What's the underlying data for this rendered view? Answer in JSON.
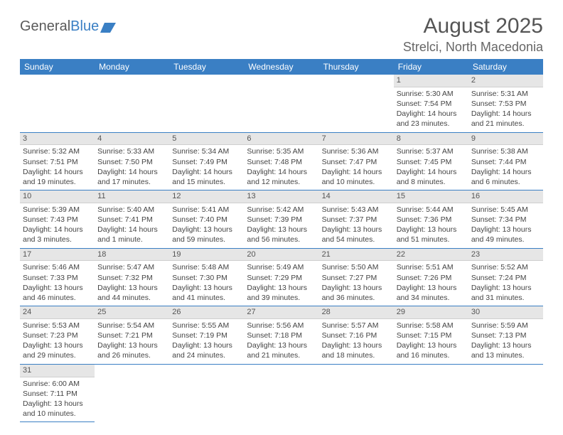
{
  "logo": {
    "text1": "General",
    "text2": "Blue"
  },
  "title": "August 2025",
  "location": "Strelci, North Macedonia",
  "colors": {
    "header_bg": "#3a7fc4",
    "header_text": "#ffffff",
    "daynum_bg": "#e6e6e6",
    "row_border": "#3a7fc4",
    "body_text": "#444444",
    "title_text": "#555555"
  },
  "weekdays": [
    "Sunday",
    "Monday",
    "Tuesday",
    "Wednesday",
    "Thursday",
    "Friday",
    "Saturday"
  ],
  "days": [
    {
      "n": 1,
      "sr": "5:30 AM",
      "ss": "7:54 PM",
      "dl": "14 hours and 23 minutes."
    },
    {
      "n": 2,
      "sr": "5:31 AM",
      "ss": "7:53 PM",
      "dl": "14 hours and 21 minutes."
    },
    {
      "n": 3,
      "sr": "5:32 AM",
      "ss": "7:51 PM",
      "dl": "14 hours and 19 minutes."
    },
    {
      "n": 4,
      "sr": "5:33 AM",
      "ss": "7:50 PM",
      "dl": "14 hours and 17 minutes."
    },
    {
      "n": 5,
      "sr": "5:34 AM",
      "ss": "7:49 PM",
      "dl": "14 hours and 15 minutes."
    },
    {
      "n": 6,
      "sr": "5:35 AM",
      "ss": "7:48 PM",
      "dl": "14 hours and 12 minutes."
    },
    {
      "n": 7,
      "sr": "5:36 AM",
      "ss": "7:47 PM",
      "dl": "14 hours and 10 minutes."
    },
    {
      "n": 8,
      "sr": "5:37 AM",
      "ss": "7:45 PM",
      "dl": "14 hours and 8 minutes."
    },
    {
      "n": 9,
      "sr": "5:38 AM",
      "ss": "7:44 PM",
      "dl": "14 hours and 6 minutes."
    },
    {
      "n": 10,
      "sr": "5:39 AM",
      "ss": "7:43 PM",
      "dl": "14 hours and 3 minutes."
    },
    {
      "n": 11,
      "sr": "5:40 AM",
      "ss": "7:41 PM",
      "dl": "14 hours and 1 minute."
    },
    {
      "n": 12,
      "sr": "5:41 AM",
      "ss": "7:40 PM",
      "dl": "13 hours and 59 minutes."
    },
    {
      "n": 13,
      "sr": "5:42 AM",
      "ss": "7:39 PM",
      "dl": "13 hours and 56 minutes."
    },
    {
      "n": 14,
      "sr": "5:43 AM",
      "ss": "7:37 PM",
      "dl": "13 hours and 54 minutes."
    },
    {
      "n": 15,
      "sr": "5:44 AM",
      "ss": "7:36 PM",
      "dl": "13 hours and 51 minutes."
    },
    {
      "n": 16,
      "sr": "5:45 AM",
      "ss": "7:34 PM",
      "dl": "13 hours and 49 minutes."
    },
    {
      "n": 17,
      "sr": "5:46 AM",
      "ss": "7:33 PM",
      "dl": "13 hours and 46 minutes."
    },
    {
      "n": 18,
      "sr": "5:47 AM",
      "ss": "7:32 PM",
      "dl": "13 hours and 44 minutes."
    },
    {
      "n": 19,
      "sr": "5:48 AM",
      "ss": "7:30 PM",
      "dl": "13 hours and 41 minutes."
    },
    {
      "n": 20,
      "sr": "5:49 AM",
      "ss": "7:29 PM",
      "dl": "13 hours and 39 minutes."
    },
    {
      "n": 21,
      "sr": "5:50 AM",
      "ss": "7:27 PM",
      "dl": "13 hours and 36 minutes."
    },
    {
      "n": 22,
      "sr": "5:51 AM",
      "ss": "7:26 PM",
      "dl": "13 hours and 34 minutes."
    },
    {
      "n": 23,
      "sr": "5:52 AM",
      "ss": "7:24 PM",
      "dl": "13 hours and 31 minutes."
    },
    {
      "n": 24,
      "sr": "5:53 AM",
      "ss": "7:23 PM",
      "dl": "13 hours and 29 minutes."
    },
    {
      "n": 25,
      "sr": "5:54 AM",
      "ss": "7:21 PM",
      "dl": "13 hours and 26 minutes."
    },
    {
      "n": 26,
      "sr": "5:55 AM",
      "ss": "7:19 PM",
      "dl": "13 hours and 24 minutes."
    },
    {
      "n": 27,
      "sr": "5:56 AM",
      "ss": "7:18 PM",
      "dl": "13 hours and 21 minutes."
    },
    {
      "n": 28,
      "sr": "5:57 AM",
      "ss": "7:16 PM",
      "dl": "13 hours and 18 minutes."
    },
    {
      "n": 29,
      "sr": "5:58 AM",
      "ss": "7:15 PM",
      "dl": "13 hours and 16 minutes."
    },
    {
      "n": 30,
      "sr": "5:59 AM",
      "ss": "7:13 PM",
      "dl": "13 hours and 13 minutes."
    },
    {
      "n": 31,
      "sr": "6:00 AM",
      "ss": "7:11 PM",
      "dl": "13 hours and 10 minutes."
    }
  ],
  "first_day_col": 5,
  "labels": {
    "sunrise": "Sunrise:",
    "sunset": "Sunset:",
    "daylight": "Daylight:"
  }
}
